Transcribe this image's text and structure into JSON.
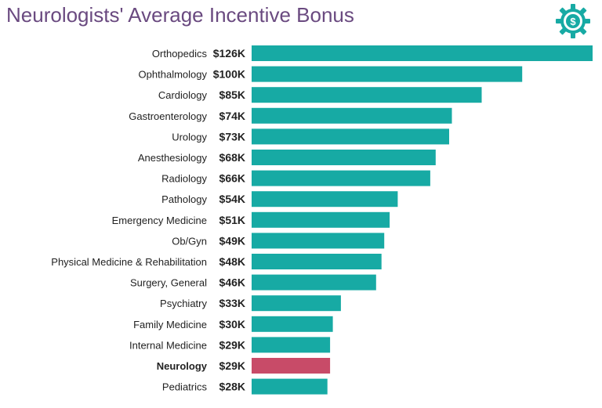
{
  "chart_data": {
    "type": "bar",
    "orientation": "horizontal",
    "title": "Neurologists' Average Incentive Bonus",
    "categories": [
      "Orthopedics",
      "Ophthalmology",
      "Cardiology",
      "Gastroenterology",
      "Urology",
      "Anesthesiology",
      "Radiology",
      "Pathology",
      "Emergency Medicine",
      "Ob/Gyn",
      "Physical Medicine & Rehabilitation",
      "Surgery, General",
      "Psychiatry",
      "Family Medicine",
      "Internal Medicine",
      "Neurology",
      "Pediatrics"
    ],
    "values": [
      126,
      100,
      85,
      74,
      73,
      68,
      66,
      54,
      51,
      49,
      48,
      46,
      33,
      30,
      29,
      29,
      28
    ],
    "value_labels": [
      "$126K",
      "$100K",
      "$85K",
      "$74K",
      "$73K",
      "$68K",
      "$66K",
      "$54K",
      "$51K",
      "$49K",
      "$48K",
      "$46K",
      "$33K",
      "$30K",
      "$29K",
      "$29K",
      "$28K"
    ],
    "highlight_index": 15,
    "colors": {
      "bar": "#17aaa4",
      "highlight": "#c84b68",
      "title": "#6a4a80",
      "text": "#222222"
    },
    "grid": false,
    "legend": "none"
  },
  "logo": {
    "icon": "money-gear-icon",
    "color": "#17aaa4"
  }
}
